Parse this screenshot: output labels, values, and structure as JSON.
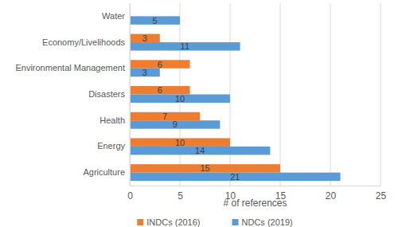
{
  "chart_data": {
    "type": "bar",
    "orientation": "horizontal",
    "categories": [
      "Water",
      "Economy/Livelihoods",
      "Environmental Management",
      "Disasters",
      "Health",
      "Energy",
      "Agriculture"
    ],
    "series": [
      {
        "name": "INDCs (2016)",
        "color": "#ed7d31",
        "values": [
          null,
          3,
          6,
          6,
          7,
          10,
          15
        ]
      },
      {
        "name": "NDCs (2019)",
        "color": "#5b9bd5",
        "values": [
          5,
          11,
          3,
          10,
          9,
          14,
          21
        ]
      }
    ],
    "x_label": "# of references",
    "xlim": [
      0,
      25
    ],
    "xticks": [
      0,
      5,
      10,
      15,
      20,
      25
    ],
    "grid": true,
    "legend": "bottom",
    "data_labels": true
  }
}
